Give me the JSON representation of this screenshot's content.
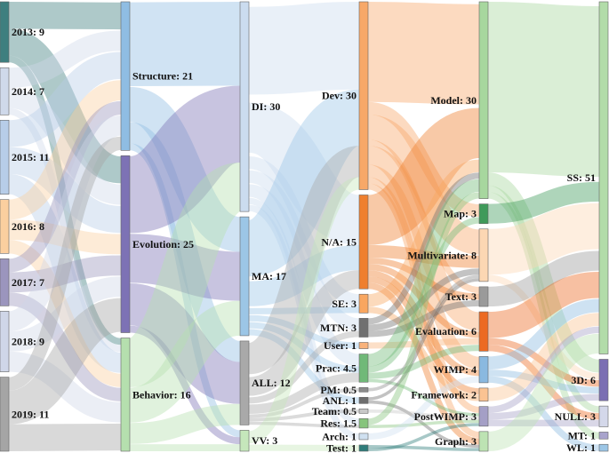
{
  "chart_data": {
    "type": "sankey",
    "columns": [
      {
        "nodes": [
          {
            "id": "y2013",
            "label": "2013: 9",
            "value": 9,
            "color": "#3e7f7f"
          },
          {
            "id": "y2014",
            "label": "2014: 7",
            "value": 7,
            "color": "#cfd9ea"
          },
          {
            "id": "y2015",
            "label": "2015: 11",
            "value": 11,
            "color": "#b7cde8"
          },
          {
            "id": "y2016",
            "label": "2016: 8",
            "value": 8,
            "color": "#fbcf9f"
          },
          {
            "id": "y2017",
            "label": "2017: 7",
            "value": 7,
            "color": "#9b95bd"
          },
          {
            "id": "y2018",
            "label": "2018: 9",
            "value": 9,
            "color": "#cfd6e8"
          },
          {
            "id": "y2019",
            "label": "2019: 11",
            "value": 11,
            "color": "#a5a5a5"
          }
        ]
      },
      {
        "nodes": [
          {
            "id": "structure",
            "label": "Structure: 21",
            "value": 21,
            "color": "#8fbde3"
          },
          {
            "id": "evolution",
            "label": "Evolution: 25",
            "value": 25,
            "color": "#7d72b5"
          },
          {
            "id": "behavior",
            "label": "Behavior: 16",
            "value": 16,
            "color": "#b5dfae"
          }
        ]
      },
      {
        "nodes": [
          {
            "id": "di",
            "label": "DI: 30",
            "value": 30,
            "color": "#cbdcef"
          },
          {
            "id": "ma",
            "label": "MA: 17",
            "value": 17,
            "color": "#9cc6e6"
          },
          {
            "id": "all",
            "label": "ALL: 12",
            "value": 12,
            "color": "#a9a9a9"
          },
          {
            "id": "vv",
            "label": "VV: 3",
            "value": 3,
            "color": "#c5e7bb"
          }
        ]
      },
      {
        "nodes": [
          {
            "id": "dev",
            "label": "Dev: 30",
            "value": 30,
            "color": "#f7a868"
          },
          {
            "id": "na",
            "label": "N/A: 15",
            "value": 15,
            "color": "#ef7f2e"
          },
          {
            "id": "se",
            "label": "SE: 3",
            "value": 3,
            "color": "#f9a65f"
          },
          {
            "id": "mtn",
            "label": "MTN: 3",
            "value": 3,
            "color": "#707070"
          },
          {
            "id": "user",
            "label": "User: 1",
            "value": 1,
            "color": "#f9b27a"
          },
          {
            "id": "prac",
            "label": "Prac: 4.5",
            "value": 4.5,
            "color": "#70b978"
          },
          {
            "id": "pm",
            "label": "PM: 0.5",
            "value": 0.5,
            "color": "#8c8c8c"
          },
          {
            "id": "anl",
            "label": "ANL: 1",
            "value": 1,
            "color": "#6e6e6e"
          },
          {
            "id": "team",
            "label": "Team: 0.5",
            "value": 0.5,
            "color": "#c8c8c8"
          },
          {
            "id": "res",
            "label": "Res: 1.5",
            "value": 1.5,
            "color": "#86c47c"
          },
          {
            "id": "arch",
            "label": "Arch: 1",
            "value": 1,
            "color": "#cfe0f0"
          },
          {
            "id": "test",
            "label": "Test: 1",
            "value": 1,
            "color": "#2e7c7a"
          }
        ]
      },
      {
        "nodes": [
          {
            "id": "model",
            "label": "Model: 30",
            "value": 30,
            "color": "#a7d79e"
          },
          {
            "id": "map",
            "label": "Map: 3",
            "value": 3,
            "color": "#3f9a5a"
          },
          {
            "id": "multivariate",
            "label": "Multivariate: 8",
            "value": 8,
            "color": "#fcd7b3"
          },
          {
            "id": "text",
            "label": "Text: 3",
            "value": 3,
            "color": "#9a9a9a"
          },
          {
            "id": "evaluation",
            "label": "Evaluation: 6",
            "value": 6,
            "color": "#ec6a22"
          },
          {
            "id": "wimp",
            "label": "WIMP: 4",
            "value": 4,
            "color": "#8ab9e0"
          },
          {
            "id": "framework",
            "label": "Framework: 2",
            "value": 2,
            "color": "#fbc392"
          },
          {
            "id": "postwimp",
            "label": "PostWIMP: 3",
            "value": 3,
            "color": "#a49fc6"
          },
          {
            "id": "graph",
            "label": "Graph: 3",
            "value": 3,
            "color": "#bde3b3"
          }
        ]
      },
      {
        "nodes": [
          {
            "id": "ss",
            "label": "SS: 51",
            "value": 51,
            "color": "#b2dca9"
          },
          {
            "id": "d3",
            "label": "3D: 6",
            "value": 6,
            "color": "#7b6fb3"
          },
          {
            "id": "null",
            "label": "NULL: 3",
            "value": 3,
            "color": "#d4d8ea"
          },
          {
            "id": "mt",
            "label": "MT: 1",
            "value": 1,
            "color": "#a8a3cc"
          },
          {
            "id": "wl",
            "label": "WL: 1",
            "value": 1,
            "color": "#9cc6e6"
          }
        ]
      }
    ],
    "links": [
      {
        "source": "y2013",
        "target": "structure",
        "value": 4
      },
      {
        "source": "y2013",
        "target": "evolution",
        "value": 4
      },
      {
        "source": "y2013",
        "target": "behavior",
        "value": 1
      },
      {
        "source": "y2014",
        "target": "structure",
        "value": 3
      },
      {
        "source": "y2014",
        "target": "evolution",
        "value": 3
      },
      {
        "source": "y2014",
        "target": "behavior",
        "value": 1
      },
      {
        "source": "y2015",
        "target": "structure",
        "value": 4
      },
      {
        "source": "y2015",
        "target": "evolution",
        "value": 4
      },
      {
        "source": "y2015",
        "target": "behavior",
        "value": 3
      },
      {
        "source": "y2016",
        "target": "structure",
        "value": 3
      },
      {
        "source": "y2016",
        "target": "evolution",
        "value": 3
      },
      {
        "source": "y2016",
        "target": "behavior",
        "value": 2
      },
      {
        "source": "y2017",
        "target": "structure",
        "value": 2
      },
      {
        "source": "y2017",
        "target": "evolution",
        "value": 3
      },
      {
        "source": "y2017",
        "target": "behavior",
        "value": 2
      },
      {
        "source": "y2018",
        "target": "structure",
        "value": 3
      },
      {
        "source": "y2018",
        "target": "evolution",
        "value": 3
      },
      {
        "source": "y2018",
        "target": "behavior",
        "value": 3
      },
      {
        "source": "y2019",
        "target": "structure",
        "value": 2
      },
      {
        "source": "y2019",
        "target": "evolution",
        "value": 5
      },
      {
        "source": "y2019",
        "target": "behavior",
        "value": 4
      },
      {
        "source": "structure",
        "target": "di",
        "value": 12
      },
      {
        "source": "structure",
        "target": "ma",
        "value": 5
      },
      {
        "source": "structure",
        "target": "all",
        "value": 3
      },
      {
        "source": "structure",
        "target": "vv",
        "value": 1
      },
      {
        "source": "evolution",
        "target": "di",
        "value": 11
      },
      {
        "source": "evolution",
        "target": "ma",
        "value": 7
      },
      {
        "source": "evolution",
        "target": "all",
        "value": 6
      },
      {
        "source": "evolution",
        "target": "vv",
        "value": 1
      },
      {
        "source": "behavior",
        "target": "di",
        "value": 7
      },
      {
        "source": "behavior",
        "target": "ma",
        "value": 5
      },
      {
        "source": "behavior",
        "target": "all",
        "value": 3
      },
      {
        "source": "behavior",
        "target": "vv",
        "value": 1
      },
      {
        "source": "di",
        "target": "dev",
        "value": 14
      },
      {
        "source": "di",
        "target": "na",
        "value": 8
      },
      {
        "source": "di",
        "target": "se",
        "value": 2
      },
      {
        "source": "di",
        "target": "mtn",
        "value": 2
      },
      {
        "source": "di",
        "target": "prac",
        "value": 2
      },
      {
        "source": "di",
        "target": "res",
        "value": 1
      },
      {
        "source": "di",
        "target": "arch",
        "value": 1
      },
      {
        "source": "ma",
        "target": "dev",
        "value": 9
      },
      {
        "source": "ma",
        "target": "na",
        "value": 4
      },
      {
        "source": "ma",
        "target": "se",
        "value": 1
      },
      {
        "source": "ma",
        "target": "user",
        "value": 1
      },
      {
        "source": "ma",
        "target": "prac",
        "value": 1
      },
      {
        "source": "ma",
        "target": "anl",
        "value": 1
      },
      {
        "source": "all",
        "target": "dev",
        "value": 5
      },
      {
        "source": "all",
        "target": "na",
        "value": 3
      },
      {
        "source": "all",
        "target": "mtn",
        "value": 1
      },
      {
        "source": "all",
        "target": "prac",
        "value": 1.5
      },
      {
        "source": "all",
        "target": "pm",
        "value": 0.5
      },
      {
        "source": "all",
        "target": "team",
        "value": 0.5
      },
      {
        "source": "all",
        "target": "res",
        "value": 0.5
      },
      {
        "source": "vv",
        "target": "dev",
        "value": 2
      },
      {
        "source": "vv",
        "target": "test",
        "value": 1
      },
      {
        "source": "dev",
        "target": "model",
        "value": 16
      },
      {
        "source": "dev",
        "target": "map",
        "value": 2
      },
      {
        "source": "dev",
        "target": "multivariate",
        "value": 4
      },
      {
        "source": "dev",
        "target": "text",
        "value": 1
      },
      {
        "source": "dev",
        "target": "evaluation",
        "value": 3
      },
      {
        "source": "dev",
        "target": "wimp",
        "value": 2
      },
      {
        "source": "dev",
        "target": "postwimp",
        "value": 1
      },
      {
        "source": "dev",
        "target": "graph",
        "value": 1
      },
      {
        "source": "na",
        "target": "model",
        "value": 8
      },
      {
        "source": "na",
        "target": "multivariate",
        "value": 2
      },
      {
        "source": "na",
        "target": "text",
        "value": 1
      },
      {
        "source": "na",
        "target": "evaluation",
        "value": 1
      },
      {
        "source": "na",
        "target": "wimp",
        "value": 1
      },
      {
        "source": "na",
        "target": "framework",
        "value": 1
      },
      {
        "source": "na",
        "target": "graph",
        "value": 1
      },
      {
        "source": "se",
        "target": "model",
        "value": 2
      },
      {
        "source": "se",
        "target": "framework",
        "value": 1
      },
      {
        "source": "mtn",
        "target": "model",
        "value": 1
      },
      {
        "source": "mtn",
        "target": "multivariate",
        "value": 1
      },
      {
        "source": "mtn",
        "target": "text",
        "value": 1
      },
      {
        "source": "user",
        "target": "evaluation",
        "value": 1
      },
      {
        "source": "prac",
        "target": "model",
        "value": 2
      },
      {
        "source": "prac",
        "target": "map",
        "value": 1
      },
      {
        "source": "prac",
        "target": "evaluation",
        "value": 1
      },
      {
        "source": "prac",
        "target": "postwimp",
        "value": 0.5
      },
      {
        "source": "pm",
        "target": "multivariate",
        "value": 0.5
      },
      {
        "source": "anl",
        "target": "multivariate",
        "value": 0.5
      },
      {
        "source": "anl",
        "target": "graph",
        "value": 0.5
      },
      {
        "source": "team",
        "target": "postwimp",
        "value": 0.5
      },
      {
        "source": "res",
        "target": "model",
        "value": 1
      },
      {
        "source": "res",
        "target": "postwimp",
        "value": 0.5
      },
      {
        "source": "arch",
        "target": "wimp",
        "value": 1
      },
      {
        "source": "test",
        "target": "graph",
        "value": 0.5
      },
      {
        "source": "test",
        "target": "postwimp",
        "value": 0.5
      },
      {
        "source": "model",
        "target": "ss",
        "value": 26
      },
      {
        "source": "model",
        "target": "d3",
        "value": 2
      },
      {
        "source": "model",
        "target": "null",
        "value": 1
      },
      {
        "source": "model",
        "target": "mt",
        "value": 1
      },
      {
        "source": "map",
        "target": "ss",
        "value": 3
      },
      {
        "source": "multivariate",
        "target": "ss",
        "value": 7
      },
      {
        "source": "multivariate",
        "target": "d3",
        "value": 1
      },
      {
        "source": "text",
        "target": "ss",
        "value": 3
      },
      {
        "source": "evaluation",
        "target": "ss",
        "value": 4
      },
      {
        "source": "evaluation",
        "target": "d3",
        "value": 1
      },
      {
        "source": "evaluation",
        "target": "null",
        "value": 1
      },
      {
        "source": "wimp",
        "target": "ss",
        "value": 2
      },
      {
        "source": "wimp",
        "target": "d3",
        "value": 1
      },
      {
        "source": "wimp",
        "target": "wl",
        "value": 1
      },
      {
        "source": "framework",
        "target": "ss",
        "value": 2
      },
      {
        "source": "postwimp",
        "target": "ss",
        "value": 1
      },
      {
        "source": "postwimp",
        "target": "d3",
        "value": 1
      },
      {
        "source": "postwimp",
        "target": "null",
        "value": 1
      },
      {
        "source": "graph",
        "target": "ss",
        "value": 3
      }
    ]
  }
}
